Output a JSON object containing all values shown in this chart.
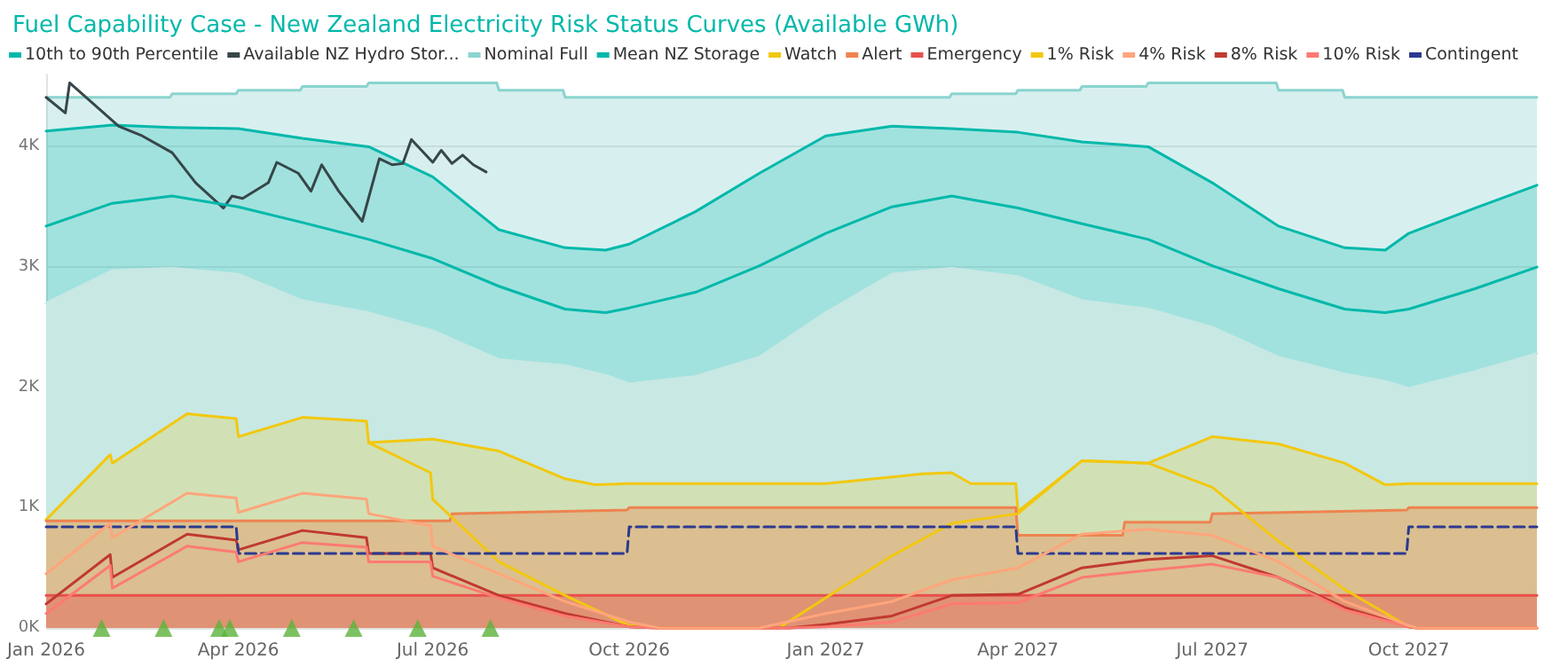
{
  "chart_data": {
    "type": "line",
    "title": "Fuel Capability Case - New Zealand Electricity Risk Status Curves (Available GWh)",
    "legend": "top left",
    "grid": "y",
    "marker": "none",
    "xlim": [
      "2026-01-01",
      "2027-11-30"
    ],
    "xticks": [
      {
        "value": "2026-01-01",
        "label": "Jan 2026"
      },
      {
        "value": "2026-04-01",
        "label": "Apr 2026"
      },
      {
        "value": "2026-07-01",
        "label": "Jul 2026"
      },
      {
        "value": "2026-10-01",
        "label": "Oct 2026"
      },
      {
        "value": "2027-01-01",
        "label": "Jan 2027"
      },
      {
        "value": "2027-04-01",
        "label": "Apr 2027"
      },
      {
        "value": "2027-07-01",
        "label": "Jul 2027"
      },
      {
        "value": "2027-10-01",
        "label": "Oct 2027"
      }
    ],
    "ylim": [
      0,
      4600
    ],
    "yticks": [
      {
        "value": 0,
        "label": "0K"
      },
      {
        "value": 1000,
        "label": "1K"
      },
      {
        "value": 2000,
        "label": "2K"
      },
      {
        "value": 3000,
        "label": "3K"
      },
      {
        "value": 4000,
        "label": "4K"
      }
    ],
    "series": [
      {
        "name": "10th to 90th Percentile",
        "type": "area",
        "color": "#01b8aa",
        "x": [
          "2026-01-01",
          "2026-02-01",
          "2026-03-01",
          "2026-04-01",
          "2026-05-01",
          "2026-06-01",
          "2026-07-01",
          "2026-08-01",
          "2026-09-01",
          "2026-09-20",
          "2026-10-01",
          "2026-11-01",
          "2026-12-01",
          "2027-01-01",
          "2027-02-01",
          "2027-03-01",
          "2027-04-01",
          "2027-05-01",
          "2027-06-01",
          "2027-07-01",
          "2027-08-01",
          "2027-09-01",
          "2027-09-20",
          "2027-10-01",
          "2027-11-01",
          "2027-11-30"
        ],
        "values": [
          4130,
          4180,
          4160,
          4150,
          4070,
          4000,
          3750,
          3310,
          3160,
          3140,
          3190,
          3460,
          3780,
          4090,
          4170,
          4150,
          4120,
          4040,
          4000,
          3700,
          3340,
          3160,
          3140,
          3280,
          3490,
          3680
        ]
      },
      {
        "type": "area",
        "color": "#c8e8e4",
        "x": [
          "2026-01-01",
          "2026-02-01",
          "2026-03-01",
          "2026-04-01",
          "2026-05-01",
          "2026-06-01",
          "2026-07-01",
          "2026-08-01",
          "2026-09-01",
          "2026-09-20",
          "2026-10-01",
          "2026-11-01",
          "2026-12-01",
          "2027-01-01",
          "2027-02-01",
          "2027-03-01",
          "2027-04-01",
          "2027-05-01",
          "2027-06-01",
          "2027-07-01",
          "2027-08-01",
          "2027-09-01",
          "2027-09-20",
          "2027-10-01",
          "2027-11-01",
          "2027-11-30"
        ],
        "values": [
          2700,
          2970,
          2990,
          2940,
          2720,
          2620,
          2470,
          2230,
          2180,
          2100,
          2030,
          2090,
          2250,
          2620,
          2940,
          2990,
          2920,
          2720,
          2650,
          2500,
          2250,
          2110,
          2050,
          1990,
          2130,
          2280
        ]
      },
      {
        "name": "Available NZ Hydro Stor...",
        "color": "#374649",
        "x": [
          "2026-01-01",
          "2026-01-10",
          "2026-01-12",
          "2026-02-04",
          "2026-02-15",
          "2026-03-01",
          "2026-03-12",
          "2026-03-25",
          "2026-03-29",
          "2026-04-03",
          "2026-04-15",
          "2026-04-19",
          "2026-04-29",
          "2026-05-05",
          "2026-05-10",
          "2026-05-18",
          "2026-05-29",
          "2026-06-06",
          "2026-06-12",
          "2026-06-17",
          "2026-06-21",
          "2026-07-01",
          "2026-07-05",
          "2026-07-10",
          "2026-07-15",
          "2026-07-20",
          "2026-07-26"
        ],
        "values": [
          4410,
          4280,
          4530,
          4170,
          4090,
          3950,
          3700,
          3490,
          3590,
          3570,
          3700,
          3870,
          3780,
          3630,
          3850,
          3630,
          3380,
          3900,
          3850,
          3860,
          4060,
          3870,
          3970,
          3860,
          3930,
          3850,
          3790
        ]
      },
      {
        "name": "Nominal Full",
        "type": "area",
        "color": "#8ad4cf",
        "x": [
          "2026-01-01",
          "2026-02-28",
          "2026-03-01",
          "2026-03-31",
          "2026-04-01",
          "2026-04-30",
          "2026-05-01",
          "2026-05-31",
          "2026-06-01",
          "2026-07-31",
          "2026-08-01",
          "2026-08-31",
          "2026-09-01",
          "2027-02-28",
          "2027-03-01",
          "2027-03-31",
          "2027-04-01",
          "2027-04-30",
          "2027-05-01",
          "2027-05-31",
          "2027-06-01",
          "2027-07-31",
          "2027-08-01",
          "2027-08-31",
          "2027-09-01",
          "2027-11-30"
        ],
        "values": [
          4410,
          4410,
          4440,
          4440,
          4470,
          4470,
          4500,
          4500,
          4530,
          4530,
          4470,
          4470,
          4410,
          4410,
          4440,
          4440,
          4470,
          4470,
          4500,
          4500,
          4530,
          4530,
          4470,
          4470,
          4410,
          4410
        ]
      },
      {
        "name": "Mean NZ Storage",
        "color": "#01b8aa",
        "x": [
          "2026-01-01",
          "2026-02-01",
          "2026-03-01",
          "2026-04-01",
          "2026-05-01",
          "2026-06-01",
          "2026-07-01",
          "2026-08-01",
          "2026-09-01",
          "2026-09-20",
          "2026-10-01",
          "2026-11-01",
          "2026-12-01",
          "2027-01-01",
          "2027-02-01",
          "2027-03-01",
          "2027-04-01",
          "2027-05-01",
          "2027-06-01",
          "2027-07-01",
          "2027-08-01",
          "2027-09-01",
          "2027-09-20",
          "2027-10-01",
          "2027-11-01",
          "2027-11-30"
        ],
        "values": [
          3340,
          3530,
          3590,
          3500,
          3370,
          3230,
          3070,
          2840,
          2650,
          2620,
          2660,
          2790,
          3010,
          3280,
          3500,
          3590,
          3490,
          3360,
          3230,
          3010,
          2820,
          2650,
          2620,
          2650,
          2820,
          3000
        ]
      },
      {
        "name": "Watch",
        "type": "area",
        "color": "#f2c80f",
        "x": [
          "2026-01-01",
          "2026-01-31",
          "2026-02-01",
          "2026-03-08",
          "2026-03-31",
          "2026-04-01",
          "2026-05-01",
          "2026-05-31",
          "2026-06-01",
          "2026-07-01",
          "2026-08-01",
          "2026-09-01",
          "2026-09-15",
          "2026-10-01",
          "2027-01-01",
          "2027-02-15",
          "2027-03-01",
          "2027-03-10",
          "2027-03-31",
          "2027-04-01",
          "2027-05-01",
          "2027-06-01",
          "2027-07-01",
          "2027-08-01",
          "2027-09-01",
          "2027-09-20",
          "2027-10-01",
          "2027-11-30"
        ],
        "values": [
          900,
          1440,
          1370,
          1780,
          1740,
          1590,
          1750,
          1720,
          1540,
          1570,
          1470,
          1240,
          1190,
          1200,
          1200,
          1280,
          1290,
          1200,
          1200,
          970,
          1390,
          1370,
          1590,
          1530,
          1370,
          1190,
          1200,
          1200
        ]
      },
      {
        "name": "Alert",
        "type": "area",
        "color": "#ee8350",
        "x": [
          "2026-01-01",
          "2026-07-09",
          "2026-07-10",
          "2026-09-30",
          "2026-10-01",
          "2027-03-31",
          "2027-04-01",
          "2027-05-20",
          "2027-05-21",
          "2027-06-30",
          "2027-07-01",
          "2027-09-30",
          "2027-10-01",
          "2027-11-30"
        ],
        "values": [
          890,
          890,
          950,
          980,
          1000,
          1000,
          770,
          770,
          880,
          880,
          950,
          980,
          1000,
          1000
        ]
      },
      {
        "name": "Emergency",
        "type": "area",
        "color": "#e8504c",
        "x": [
          "2026-01-01",
          "2027-11-30"
        ],
        "values": [
          270,
          270
        ]
      },
      {
        "name": "1% Risk",
        "color": "#f2c80f",
        "x": [
          "2026-06-01",
          "2026-06-30",
          "2026-07-01",
          "2026-08-01",
          "2026-09-01",
          "2026-10-01",
          "2026-10-15",
          "2026-12-10",
          "2027-01-01",
          "2027-02-01",
          "2027-03-01",
          "2027-04-01",
          "2027-05-01",
          "2027-06-01",
          "2027-07-01",
          "2027-08-01",
          "2027-09-01",
          "2027-10-01",
          "2027-10-05",
          "2027-11-30"
        ],
        "values": [
          1540,
          1290,
          1070,
          550,
          270,
          20,
          0,
          0,
          250,
          600,
          870,
          950,
          1390,
          1370,
          1170,
          720,
          320,
          10,
          0,
          0
        ]
      },
      {
        "name": "4% Risk",
        "color": "#fea57c",
        "x": [
          "2026-01-01",
          "2026-01-31",
          "2026-02-01",
          "2026-03-08",
          "2026-03-31",
          "2026-04-01",
          "2026-05-01",
          "2026-05-31",
          "2026-06-01",
          "2026-06-30",
          "2026-07-01",
          "2026-08-01",
          "2026-09-01",
          "2026-10-01",
          "2026-10-15",
          "2026-12-01",
          "2027-01-01",
          "2027-02-01",
          "2027-03-01",
          "2027-04-01",
          "2027-05-01",
          "2027-06-01",
          "2027-07-01",
          "2027-08-01",
          "2027-09-01",
          "2027-10-01",
          "2027-10-05",
          "2027-11-30"
        ],
        "values": [
          450,
          870,
          750,
          1120,
          1080,
          960,
          1120,
          1070,
          950,
          850,
          680,
          450,
          220,
          50,
          0,
          0,
          120,
          220,
          400,
          500,
          780,
          820,
          770,
          550,
          220,
          20,
          0,
          0
        ]
      },
      {
        "name": "8% Risk",
        "color": "#c0392f",
        "x": [
          "2026-01-01",
          "2026-01-31",
          "2026-02-01",
          "2026-03-08",
          "2026-03-31",
          "2026-04-01",
          "2026-05-01",
          "2026-05-31",
          "2026-06-01",
          "2026-06-30",
          "2026-07-01",
          "2026-08-01",
          "2026-09-01",
          "2026-10-01",
          "2026-10-15",
          "2026-12-15",
          "2027-01-01",
          "2027-02-01",
          "2027-03-01",
          "2027-04-01",
          "2027-05-01",
          "2027-06-01",
          "2027-07-01",
          "2027-08-01",
          "2027-09-01",
          "2027-10-01",
          "2027-10-05",
          "2027-11-30"
        ],
        "values": [
          200,
          610,
          420,
          780,
          730,
          650,
          810,
          750,
          620,
          620,
          500,
          270,
          120,
          10,
          0,
          0,
          30,
          100,
          270,
          280,
          500,
          570,
          600,
          420,
          170,
          10,
          0,
          0
        ]
      },
      {
        "name": "10% Risk",
        "color": "#fc7a72",
        "x": [
          "2026-01-01",
          "2026-01-31",
          "2026-02-01",
          "2026-03-08",
          "2026-03-31",
          "2026-04-01",
          "2026-05-01",
          "2026-05-31",
          "2026-06-01",
          "2026-06-30",
          "2026-07-01",
          "2026-08-01",
          "2026-09-01",
          "2026-10-01",
          "2026-10-15",
          "2026-12-15",
          "2027-01-01",
          "2027-02-01",
          "2027-03-01",
          "2027-04-01",
          "2027-05-01",
          "2027-06-01",
          "2027-07-01",
          "2027-08-01",
          "2027-09-01",
          "2027-10-01",
          "2027-10-05",
          "2027-11-30"
        ],
        "values": [
          120,
          520,
          330,
          680,
          630,
          550,
          710,
          670,
          550,
          550,
          430,
          250,
          100,
          10,
          0,
          0,
          10,
          50,
          200,
          210,
          420,
          480,
          530,
          420,
          150,
          10,
          0,
          0
        ]
      },
      {
        "name": "Contingent",
        "color": "#2b3a8f",
        "line_style": "dashed",
        "x": [
          "2026-01-01",
          "2026-03-31",
          "2026-04-01",
          "2026-09-30",
          "2026-10-01",
          "2027-03-31",
          "2027-04-01",
          "2027-09-30",
          "2027-10-01",
          "2027-11-30"
        ],
        "values": [
          840,
          840,
          620,
          620,
          840,
          840,
          620,
          620,
          840,
          840
        ]
      },
      {
        "type": "scatter",
        "color": "#5bb33b",
        "marker": "triangle",
        "x": [
          "2026-01-27",
          "2026-02-25",
          "2026-03-23",
          "2026-03-28",
          "2026-04-26",
          "2026-05-25",
          "2026-06-24",
          "2026-07-28"
        ],
        "values": [
          0,
          0,
          0,
          0,
          0,
          0,
          0,
          0
        ]
      }
    ]
  }
}
